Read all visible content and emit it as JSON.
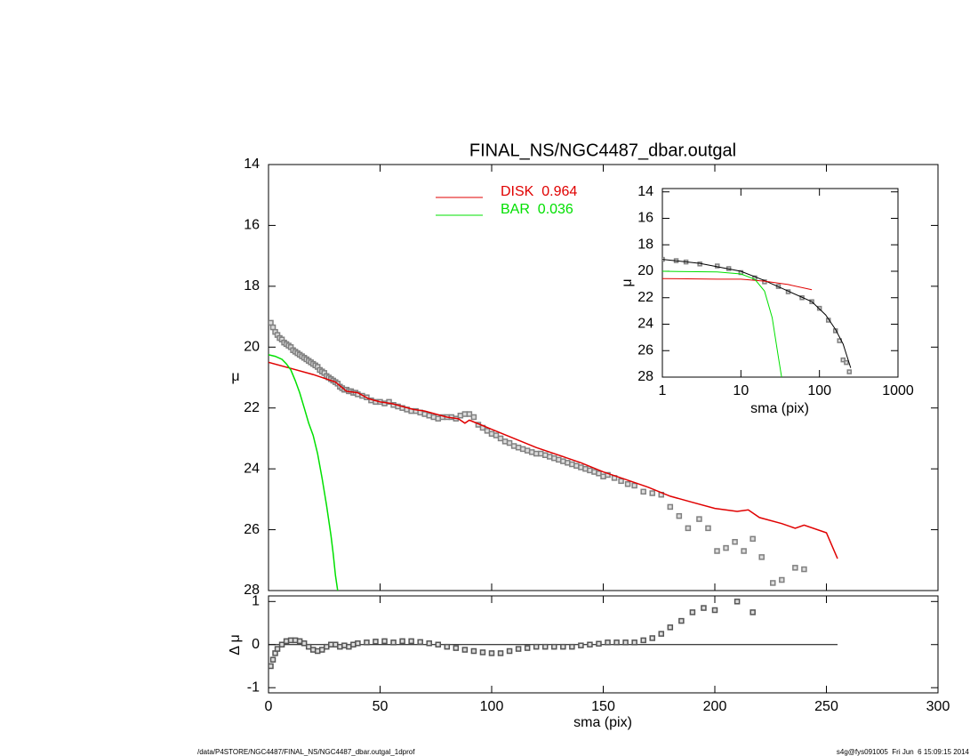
{
  "chart_data": [
    {
      "type": "line",
      "title": "FINAL_NS/NGC4487_dbar.outgal",
      "ylabel": "μ",
      "xlim": [
        0,
        300
      ],
      "ylim": [
        28,
        14
      ],
      "yticks": [
        14,
        16,
        18,
        20,
        22,
        24,
        26,
        28
      ],
      "legend": "upper center",
      "series": [
        {
          "color": "#808080",
          "marker": "square",
          "x": [
            1,
            2,
            3,
            4,
            5,
            6,
            7,
            8,
            9,
            10,
            11,
            12,
            13,
            14,
            15,
            16,
            17,
            18,
            19,
            20,
            21,
            22,
            23,
            24,
            25,
            26,
            27,
            28,
            29,
            30,
            31,
            32,
            33,
            34,
            35,
            36,
            37,
            38,
            39,
            40,
            42,
            44,
            46,
            48,
            50,
            52,
            54,
            56,
            58,
            60,
            62,
            64,
            66,
            68,
            70,
            72,
            74,
            76,
            78,
            80,
            82,
            84,
            86,
            88,
            90,
            92,
            94,
            96,
            98,
            100,
            102,
            104,
            106,
            108,
            110,
            112,
            114,
            116,
            118,
            120,
            122,
            124,
            126,
            128,
            130,
            132,
            134,
            136,
            138,
            140,
            142,
            144,
            146,
            148,
            150,
            152,
            155,
            158,
            161,
            164,
            168,
            172,
            176,
            180,
            184,
            188,
            193,
            197,
            201,
            205,
            209,
            213,
            217,
            221,
            226,
            230,
            236,
            240
          ],
          "values": [
            19.2,
            19.35,
            19.5,
            19.6,
            19.7,
            19.75,
            19.85,
            19.9,
            19.95,
            20.0,
            20.1,
            20.15,
            20.2,
            20.25,
            20.3,
            20.35,
            20.4,
            20.45,
            20.5,
            20.55,
            20.6,
            20.65,
            20.75,
            20.8,
            20.85,
            20.95,
            21.0,
            21.05,
            21.1,
            21.15,
            21.2,
            21.3,
            21.35,
            21.4,
            21.4,
            21.45,
            21.45,
            21.5,
            21.5,
            21.55,
            21.6,
            21.65,
            21.75,
            21.8,
            21.8,
            21.85,
            21.8,
            21.9,
            21.95,
            22.0,
            22.05,
            22.1,
            22.1,
            22.15,
            22.2,
            22.25,
            22.3,
            22.35,
            22.3,
            22.3,
            22.3,
            22.35,
            22.25,
            22.2,
            22.2,
            22.3,
            22.55,
            22.65,
            22.75,
            22.85,
            22.9,
            23.0,
            23.1,
            23.15,
            23.25,
            23.3,
            23.35,
            23.4,
            23.45,
            23.5,
            23.5,
            23.55,
            23.6,
            23.65,
            23.7,
            23.75,
            23.8,
            23.85,
            23.9,
            23.95,
            24.0,
            24.05,
            24.1,
            24.15,
            24.25,
            24.2,
            24.3,
            24.4,
            24.5,
            24.55,
            24.75,
            24.8,
            24.85,
            25.25,
            25.55,
            25.95,
            25.65,
            25.95,
            26.7,
            26.6,
            26.4,
            26.7,
            26.3,
            26.9,
            27.75,
            27.65,
            27.25,
            27.3
          ]
        },
        {
          "name": "DISK  0.964",
          "color": "#e00000",
          "x": [
            0,
            10,
            20,
            30,
            35,
            40,
            45,
            50,
            55,
            60,
            65,
            70,
            75,
            80,
            85,
            88,
            90,
            95,
            100,
            110,
            120,
            130,
            140,
            150,
            160,
            170,
            180,
            190,
            200,
            210,
            215,
            220,
            230,
            236,
            240,
            250,
            255
          ],
          "values": [
            20.5,
            20.7,
            20.9,
            21.15,
            21.45,
            21.5,
            21.7,
            21.8,
            21.85,
            21.95,
            22.05,
            22.1,
            22.2,
            22.3,
            22.35,
            22.5,
            22.4,
            22.55,
            22.7,
            23.0,
            23.3,
            23.55,
            23.8,
            24.1,
            24.35,
            24.6,
            24.9,
            25.1,
            25.3,
            25.4,
            25.35,
            25.6,
            25.8,
            25.95,
            25.85,
            26.1,
            26.95
          ]
        },
        {
          "name": "BAR  0.036",
          "color": "#00e000",
          "x": [
            0,
            3,
            6,
            8,
            10,
            12,
            14,
            16,
            18,
            20,
            22,
            24,
            26,
            28,
            29,
            30,
            31
          ],
          "values": [
            20.25,
            20.3,
            20.4,
            20.55,
            20.75,
            21.1,
            21.5,
            22.0,
            22.5,
            22.9,
            23.5,
            24.3,
            25.2,
            26.2,
            26.8,
            27.5,
            28.0
          ]
        }
      ]
    },
    {
      "type": "scatter",
      "xlabel": "sma (pix)",
      "ylabel": "Δ μ",
      "xlim": [
        0,
        300
      ],
      "ylim": [
        -1.12,
        1.13
      ],
      "xticks": [
        0,
        50,
        100,
        150,
        200,
        250,
        300
      ],
      "yticks": [
        -1,
        0,
        1
      ],
      "reference": 0,
      "series": [
        {
          "color": "#555555",
          "marker": "square",
          "x": [
            1,
            2,
            3,
            4,
            6,
            8,
            10,
            12,
            14,
            16,
            18,
            20,
            22,
            24,
            26,
            28,
            30,
            32,
            34,
            36,
            38,
            40,
            44,
            48,
            52,
            56,
            60,
            64,
            68,
            72,
            76,
            80,
            84,
            88,
            92,
            96,
            100,
            104,
            108,
            112,
            116,
            120,
            124,
            128,
            132,
            136,
            140,
            144,
            148,
            152,
            156,
            160,
            164,
            168,
            172,
            176,
            180,
            185,
            190,
            195,
            200,
            210,
            217
          ],
          "values": [
            -0.5,
            -0.35,
            -0.2,
            -0.1,
            0.0,
            0.08,
            0.1,
            0.1,
            0.08,
            0.03,
            -0.05,
            -0.12,
            -0.15,
            -0.12,
            -0.05,
            0.0,
            0.0,
            -0.05,
            -0.02,
            -0.05,
            0.0,
            0.03,
            0.05,
            0.07,
            0.08,
            0.05,
            0.08,
            0.08,
            0.06,
            0.03,
            0.0,
            -0.05,
            -0.08,
            -0.12,
            -0.15,
            -0.18,
            -0.2,
            -0.2,
            -0.15,
            -0.1,
            -0.08,
            -0.05,
            -0.05,
            -0.05,
            -0.05,
            -0.05,
            -0.02,
            0.0,
            0.02,
            0.05,
            0.05,
            0.05,
            0.05,
            0.1,
            0.15,
            0.25,
            0.4,
            0.55,
            0.75,
            0.85,
            0.8,
            1.0,
            0.75
          ]
        }
      ]
    },
    {
      "type": "line",
      "xlabel": "sma (pix)",
      "ylabel": "μ",
      "log_x": true,
      "xlim": [
        1,
        1000
      ],
      "ylim": [
        28,
        13.75
      ],
      "xticks": [
        1,
        10,
        100,
        1000
      ],
      "yticks": [
        14,
        16,
        18,
        20,
        22,
        24,
        26,
        28
      ],
      "series": [
        {
          "color": "#808080",
          "marker": "square",
          "x": [
            1,
            1.5,
            2,
            3,
            5,
            7,
            10,
            15,
            20,
            30,
            40,
            60,
            80,
            100,
            130,
            160,
            180,
            200,
            220,
            240
          ],
          "values": [
            19.1,
            19.2,
            19.3,
            19.45,
            19.6,
            19.8,
            20.1,
            20.5,
            20.8,
            21.15,
            21.55,
            22.0,
            22.3,
            22.8,
            23.7,
            24.5,
            25.25,
            26.7,
            26.9,
            27.6
          ]
        },
        {
          "color": "#000000",
          "x": [
            1,
            3,
            10,
            20,
            40,
            80,
            120,
            160,
            200,
            250
          ],
          "values": [
            19.1,
            19.4,
            20.0,
            20.7,
            21.5,
            22.3,
            23.3,
            24.4,
            25.5,
            27.3
          ]
        },
        {
          "color": "#e00000",
          "x": [
            1,
            5,
            10,
            20,
            40,
            80
          ],
          "values": [
            20.55,
            20.6,
            20.6,
            20.75,
            21.0,
            21.4
          ]
        },
        {
          "color": "#00e000",
          "x": [
            1,
            5,
            10,
            15,
            20,
            25,
            30,
            33
          ],
          "values": [
            20.0,
            20.05,
            20.2,
            20.6,
            21.5,
            23.5,
            26.5,
            28.0
          ]
        }
      ]
    }
  ],
  "footer": {
    "left": "/data/P4STORE/NGC4487/FINAL_NS/NGC4487_dbar.outgal_1dprof",
    "right": "s4g@fys091005  Fri Jun  6 15:09:15 2014"
  }
}
